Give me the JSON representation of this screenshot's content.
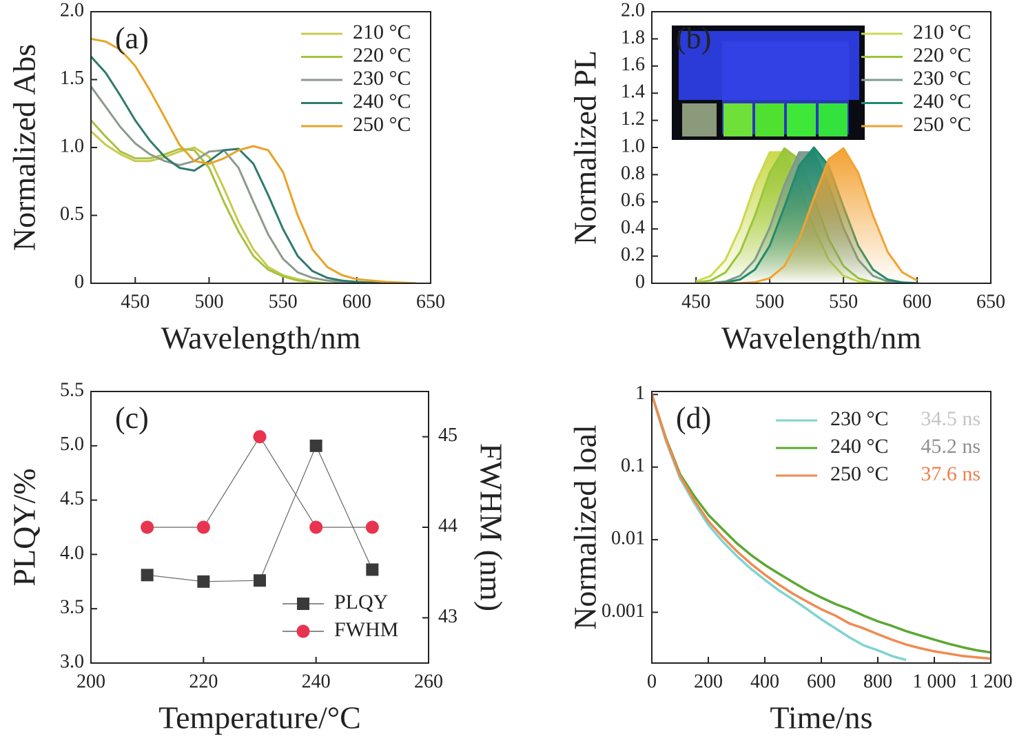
{
  "chart_data": [
    {
      "type": "line",
      "label": "(a)",
      "xlabel": "Wavelength/nm",
      "ylabel": "Normalized Abs",
      "xlim": [
        420,
        650
      ],
      "ylim": [
        0,
        2
      ],
      "xticks": [
        450,
        500,
        550,
        600,
        650
      ],
      "yticks": [
        0,
        0.5,
        {
          "value": 1,
          "label": "1.0"
        },
        1.5,
        {
          "value": 2,
          "label": "2.0"
        }
      ],
      "legend": "upper right",
      "x": [
        420,
        430,
        440,
        450,
        460,
        470,
        480,
        490,
        500,
        510,
        520,
        530,
        540,
        550,
        560,
        570,
        580,
        590,
        600,
        620,
        640
      ],
      "series": [
        {
          "name": "210 °C",
          "color": "#c9c94e",
          "values": [
            1.12,
            1.02,
            0.95,
            0.9,
            0.9,
            0.93,
            0.97,
            1.0,
            0.93,
            0.7,
            0.45,
            0.25,
            0.12,
            0.06,
            0.03,
            0.01,
            0,
            0,
            0,
            0,
            0
          ]
        },
        {
          "name": "220 °C",
          "color": "#a6c23e",
          "values": [
            1.2,
            1.08,
            0.97,
            0.92,
            0.92,
            0.95,
            0.99,
            0.98,
            0.85,
            0.6,
            0.38,
            0.2,
            0.1,
            0.05,
            0.02,
            0.01,
            0,
            0,
            0,
            0,
            0
          ]
        },
        {
          "name": "230 °C",
          "color": "#8c9a8e",
          "values": [
            1.45,
            1.3,
            1.15,
            1.03,
            0.95,
            0.9,
            0.87,
            0.9,
            0.97,
            0.98,
            0.85,
            0.6,
            0.36,
            0.18,
            0.08,
            0.04,
            0.02,
            0.01,
            0,
            0,
            0
          ]
        },
        {
          "name": "240 °C",
          "color": "#2f7b6c",
          "values": [
            1.67,
            1.55,
            1.38,
            1.2,
            1.05,
            0.93,
            0.85,
            0.83,
            0.9,
            0.98,
            0.99,
            0.88,
            0.65,
            0.4,
            0.2,
            0.09,
            0.04,
            0.02,
            0.01,
            0,
            0
          ]
        },
        {
          "name": "250 °C",
          "color": "#e9a226",
          "values": [
            1.8,
            1.78,
            1.72,
            1.6,
            1.42,
            1.22,
            1.02,
            0.9,
            0.88,
            0.92,
            0.98,
            1.01,
            0.98,
            0.82,
            0.5,
            0.25,
            0.12,
            0.06,
            0.03,
            0.01,
            0
          ]
        }
      ]
    },
    {
      "type": "area",
      "label": "(b)",
      "xlabel": "Wavelength/nm",
      "ylabel": "Normalized PL",
      "xlim": [
        420,
        650
      ],
      "ylim": [
        0,
        2
      ],
      "xticks": [
        450,
        500,
        550,
        600,
        650
      ],
      "yticks": [
        0,
        0.2,
        0.4,
        0.6,
        0.8,
        {
          "value": 1,
          "label": "1.0"
        },
        1.2,
        1.4,
        1.6,
        1.8,
        {
          "value": 2,
          "label": "2.0"
        }
      ],
      "legend": "upper right",
      "x": [
        450,
        460,
        470,
        480,
        490,
        500,
        510,
        520,
        530,
        540,
        550,
        560,
        570,
        580,
        590,
        600
      ],
      "series": [
        {
          "name": "210 °C",
          "color": "#cbd94c",
          "values": [
            0.013,
            0.055,
            0.173,
            0.409,
            0.725,
            0.965,
            0.965,
            0.725,
            0.409,
            0.173,
            0.055,
            0.013,
            0.002,
            0,
            0,
            0
          ]
        },
        {
          "name": "220 °C",
          "color": "#98c63a",
          "values": [
            0.004,
            0.021,
            0.08,
            0.231,
            0.5,
            0.814,
            0.994,
            0.912,
            0.629,
            0.326,
            0.127,
            0.037,
            0.008,
            0.001,
            0,
            0
          ]
        },
        {
          "name": "230 °C",
          "color": "#7c9c8c",
          "values": [
            0,
            0.002,
            0.013,
            0.055,
            0.173,
            0.409,
            0.725,
            0.965,
            0.965,
            0.725,
            0.409,
            0.173,
            0.055,
            0.013,
            0.002,
            0
          ]
        },
        {
          "name": "240 °C",
          "color": "#1f8a6e",
          "values": [
            0,
            0.001,
            0.006,
            0.028,
            0.101,
            0.276,
            0.564,
            0.867,
            1,
            0.867,
            0.564,
            0.276,
            0.101,
            0.028,
            0.006,
            0.001
          ]
        },
        {
          "name": "250 °C",
          "color": "#f2a232",
          "values": [
            0,
            0,
            0,
            0.001,
            0.008,
            0.037,
            0.127,
            0.326,
            0.629,
            0.912,
            0.994,
            0.814,
            0.5,
            0.231,
            0.08,
            0.021
          ]
        }
      ]
    },
    {
      "type": "line",
      "label": "(c)",
      "xlabel": "Temperature/°C",
      "ylabel": "PLQY/%",
      "y2label": "FWHM (nm)",
      "xlim": [
        200,
        260
      ],
      "ylim": [
        3,
        5.5
      ],
      "y2lim": [
        42.5,
        45.5
      ],
      "xticks": [
        200,
        220,
        240,
        260
      ],
      "yticks": [
        {
          "value": 3,
          "label": "3.0"
        },
        3.5,
        {
          "value": 4,
          "label": "4.0"
        },
        4.5,
        {
          "value": 5,
          "label": "5.0"
        },
        5.5
      ],
      "y2ticks": [
        43,
        44,
        45
      ],
      "legend": "lower right",
      "x": [
        210,
        220,
        230,
        240,
        250
      ],
      "series": [
        {
          "name": "PLQY",
          "color": "#3a3a3a",
          "marker": "square",
          "values": [
            3.81,
            3.75,
            3.76,
            5.0,
            3.86
          ]
        },
        {
          "name": "FWHM",
          "color": "#e8344e",
          "marker": "circle",
          "axis": "y2",
          "values": [
            44,
            44,
            45,
            44,
            44
          ]
        }
      ]
    },
    {
      "type": "line",
      "yscale": "log",
      "label": "(d)",
      "xlabel": "Time/ns",
      "ylabel": "Normalized loal",
      "xlim": [
        0,
        1200
      ],
      "ylim": [
        0.0002,
        1.1
      ],
      "xticks": [
        0,
        200,
        400,
        600,
        800,
        {
          "value": 1000,
          "label": "1 000"
        },
        {
          "value": 1200,
          "label": "1 200"
        }
      ],
      "yticks": [
        0.001,
        0.01,
        0.1,
        1
      ],
      "legend": "upper right",
      "x": [
        0,
        50,
        100,
        150,
        200,
        250,
        300,
        350,
        400,
        450,
        500,
        550,
        600,
        650,
        700,
        750,
        800,
        850,
        900,
        950,
        1000,
        1050,
        1100,
        1150,
        1200
      ],
      "series": [
        {
          "name": "230 °C",
          "color": "#7fd3cf",
          "lifetime": "34.5 ns",
          "lifetime_color": "#c4c4c4",
          "values": [
            1,
            0.23,
            0.07,
            0.032,
            0.016,
            0.0095,
            0.006,
            0.004,
            0.0028,
            0.002,
            0.0015,
            0.0011,
            0.0008,
            0.0006,
            0.00045,
            0.00035,
            0.0003,
            0.00025,
            0.00022,
            null,
            null,
            null,
            null,
            null,
            null
          ]
        },
        {
          "name": "240 °C",
          "color": "#5aa832",
          "lifetime": "45.2 ns",
          "lifetime_color": "#8e8e8e",
          "values": [
            1,
            0.25,
            0.08,
            0.04,
            0.022,
            0.014,
            0.009,
            0.0062,
            0.0045,
            0.0034,
            0.0026,
            0.002,
            0.0016,
            0.0013,
            0.0011,
            0.0009,
            0.00075,
            0.00065,
            0.00055,
            0.00048,
            0.00042,
            0.00037,
            0.00033,
            0.0003,
            0.00028
          ]
        },
        {
          "name": "250 °C",
          "color": "#f08a50",
          "lifetime": "37.6 ns",
          "lifetime_color": "#ef7f4c",
          "values": [
            1,
            0.24,
            0.075,
            0.035,
            0.018,
            0.011,
            0.007,
            0.0047,
            0.0033,
            0.0024,
            0.0018,
            0.0014,
            0.0011,
            0.0009,
            0.0007,
            0.0006,
            0.0005,
            0.00042,
            0.00036,
            0.00032,
            0.00029,
            0.00027,
            0.00025,
            0.00024,
            0.00023
          ]
        }
      ]
    }
  ]
}
